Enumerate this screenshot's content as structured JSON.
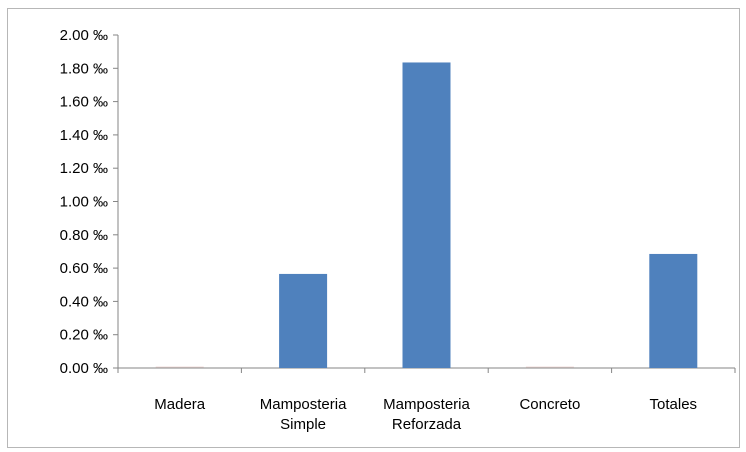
{
  "chart_data": {
    "type": "bar",
    "categories": [
      [
        "Madera"
      ],
      [
        "Mamposteria",
        "Simple"
      ],
      [
        "Mamposteria",
        "Reforzada"
      ],
      [
        "Concreto"
      ],
      [
        "Totales"
      ]
    ],
    "values": [
      0,
      0.565,
      1.835,
      0,
      0.685
    ],
    "ylim": [
      0,
      2.0
    ],
    "yticks": [
      "0.00 ‰",
      "0.20 ‰",
      "0.40 ‰",
      "0.60 ‰",
      "0.80 ‰",
      "1.00 ‰",
      "1.20 ‰",
      "1.40 ‰",
      "1.60 ‰",
      "1.80 ‰",
      "2.00 ‰"
    ],
    "title": "",
    "xlabel": "",
    "ylabel": "",
    "grid": false,
    "legend": "none",
    "colors": {
      "bar": "#4f81bd",
      "axis": "#868686",
      "zero_bar": "#f2dcdb"
    }
  }
}
